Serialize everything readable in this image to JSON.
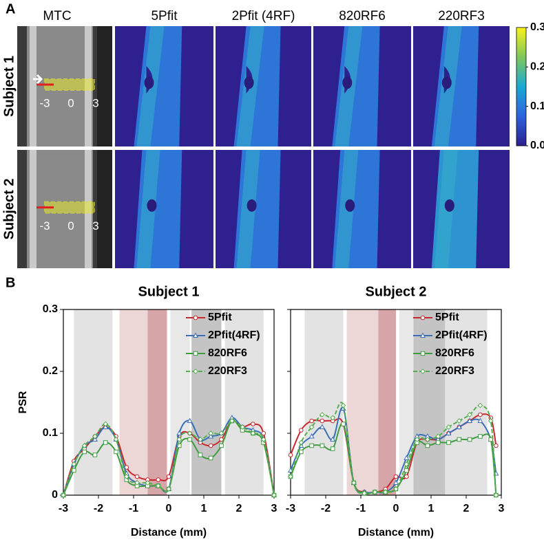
{
  "panel_labels": [
    "A",
    "B"
  ],
  "panel_a": {
    "columns": [
      "MTC",
      "5Pfit",
      "2Pfit (4RF)",
      "820RF6",
      "220RF3"
    ],
    "rows": [
      "Subject 1",
      "Subject 2"
    ],
    "image_labels": [
      "-3",
      "0",
      "3"
    ],
    "colorbar": {
      "lim": [
        0,
        0.3
      ],
      "ticks": [
        {
          "value": 0,
          "label": "0.0"
        },
        {
          "value": 0.1,
          "label": "0.1"
        },
        {
          "value": 0.2,
          "label": "0.2"
        },
        {
          "value": 0.3,
          "label": "0.3"
        }
      ]
    }
  },
  "chart_data": [
    {
      "type": "line",
      "title": "Subject 1",
      "x_label": "Distance (mm)",
      "y_label": "PSR",
      "xlim": [
        -3,
        3
      ],
      "xticks": [
        -3,
        -2,
        -1,
        0,
        1,
        2,
        3
      ],
      "ylim": [
        0,
        0.3
      ],
      "yticks": [
        0,
        0.1,
        0.2,
        0.3
      ],
      "ytick_labels": true,
      "shaded_regions": [
        {
          "x": [
            -2.7,
            -1.6
          ],
          "color": "#e3e3e3"
        },
        {
          "x": [
            -1.4,
            -0.6
          ],
          "color": "#ecd6d6"
        },
        {
          "x": [
            -0.6,
            -0.05
          ],
          "color": "#d6a5a7"
        },
        {
          "x": [
            0.05,
            0.6
          ],
          "color": "#e8e8e8"
        },
        {
          "x": [
            0.65,
            1.5
          ],
          "color": "#c4c4c4"
        },
        {
          "x": [
            1.6,
            2.7
          ],
          "color": "#e3e3e3"
        }
      ],
      "x": [
        -3,
        -2.7,
        -2.4,
        -2.1,
        -1.8,
        -1.5,
        -1.2,
        -0.9,
        -0.6,
        -0.3,
        0,
        0.3,
        0.6,
        0.9,
        1.2,
        1.5,
        1.8,
        2.1,
        2.4,
        2.7,
        3
      ],
      "series": [
        {
          "name": "5Pfit",
          "color": "#c8272d",
          "marker": "circle",
          "dashed": false,
          "values": [
            0,
            0.055,
            0.075,
            0.095,
            0.11,
            0.095,
            0.045,
            0.03,
            0.025,
            0.025,
            0.03,
            0.095,
            0.1,
            0.085,
            0.08,
            0.09,
            0.12,
            0.11,
            0.115,
            0.1,
            0
          ]
        },
        {
          "name": "2Pfit(4RF)",
          "color": "#3a6fb7",
          "marker": "triangle",
          "dashed": false,
          "values": [
            0,
            0.05,
            0.08,
            0.09,
            0.11,
            0.09,
            0.035,
            0.02,
            0.015,
            0.015,
            0.01,
            0.1,
            0.12,
            0.09,
            0.095,
            0.1,
            0.125,
            0.11,
            0.105,
            0.09,
            0
          ]
        },
        {
          "name": "820RF6",
          "color": "#3f9b3f",
          "marker": "square",
          "dashed": false,
          "values": [
            0,
            0.04,
            0.07,
            0.065,
            0.085,
            0.07,
            0.025,
            0.015,
            0.015,
            0.015,
            0.01,
            0.08,
            0.09,
            0.065,
            0.06,
            0.08,
            0.12,
            0.105,
            0.1,
            0.085,
            0
          ]
        },
        {
          "name": "220RF3",
          "color": "#55ad4f",
          "marker": "diamond",
          "dashed": true,
          "values": [
            0,
            0.05,
            0.08,
            0.095,
            0.115,
            0.09,
            0.03,
            0.02,
            0.02,
            0.015,
            0.01,
            0.09,
            0.1,
            0.09,
            0.1,
            0.1,
            0.12,
            0.11,
            0.1,
            0.09,
            0
          ]
        }
      ]
    },
    {
      "type": "line",
      "title": "Subject 2",
      "x_label": "Distance (mm)",
      "xlim": [
        -3,
        3
      ],
      "xticks": [
        -3,
        -2,
        -1,
        0,
        1,
        2,
        3
      ],
      "ylim": [
        0,
        0.3
      ],
      "yticks": [
        0,
        0.1,
        0.2,
        0.3
      ],
      "ytick_labels": false,
      "shaded_regions": [
        {
          "x": [
            -2.6,
            -1.5
          ],
          "color": "#e3e3e3"
        },
        {
          "x": [
            -1.4,
            -0.5
          ],
          "color": "#ecd6d6"
        },
        {
          "x": [
            -0.5,
            0
          ],
          "color": "#d6a5a7"
        },
        {
          "x": [
            0.1,
            0.5
          ],
          "color": "#e8e8e8"
        },
        {
          "x": [
            0.5,
            1.4
          ],
          "color": "#c4c4c4"
        },
        {
          "x": [
            1.4,
            2.6
          ],
          "color": "#e3e3e3"
        }
      ],
      "x": [
        -3,
        -2.7,
        -2.4,
        -2.1,
        -1.8,
        -1.5,
        -1.2,
        -0.9,
        -0.6,
        -0.3,
        0,
        0.3,
        0.6,
        0.9,
        1.2,
        1.5,
        1.8,
        2.1,
        2.4,
        2.7,
        2.85
      ],
      "series": [
        {
          "name": "5Pfit",
          "color": "#c8272d",
          "marker": "circle",
          "dashed": false,
          "values": [
            0.065,
            0.105,
            0.12,
            0.12,
            0.12,
            0.115,
            0.02,
            0.005,
            0.005,
            0.01,
            0.03,
            0.03,
            0.085,
            0.09,
            0.09,
            0.1,
            0.11,
            0.12,
            0.13,
            0.125,
            0.08
          ]
        },
        {
          "name": "2Pfit(4RF)",
          "color": "#3a6fb7",
          "marker": "triangle",
          "dashed": false,
          "values": [
            0.04,
            0.08,
            0.095,
            0.11,
            0.09,
            0.14,
            0.02,
            0.005,
            0.005,
            0.005,
            0.02,
            0.06,
            0.095,
            0.095,
            0.09,
            0.1,
            0.11,
            0.12,
            0.12,
            0.09,
            0.035
          ]
        },
        {
          "name": "820RF6",
          "color": "#3f9b3f",
          "marker": "square",
          "dashed": false,
          "values": [
            0.03,
            0.07,
            0.08,
            0.08,
            0.075,
            0.115,
            0.02,
            0.003,
            0.005,
            0.005,
            0.01,
            0.04,
            0.085,
            0.08,
            0.085,
            0.085,
            0.09,
            0.09,
            0.095,
            0.09,
            0
          ]
        },
        {
          "name": "220RF3",
          "color": "#55ad4f",
          "marker": "diamond",
          "dashed": true,
          "values": [
            0.03,
            0.085,
            0.11,
            0.13,
            0.125,
            0.145,
            0.02,
            0.003,
            0.005,
            0.005,
            0.01,
            0.05,
            0.09,
            0.09,
            0.095,
            0.11,
            0.12,
            0.13,
            0.145,
            0.12,
            0
          ]
        }
      ]
    }
  ]
}
